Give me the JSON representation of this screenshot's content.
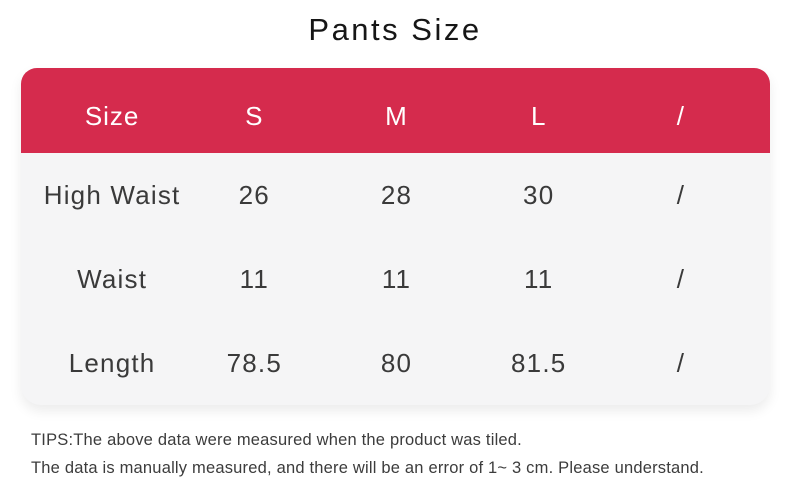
{
  "title": "Pants Size",
  "colors": {
    "accent": "#d52b4d",
    "header_text": "#ffffff",
    "card_bg": "#f5f5f6",
    "page_bg": "#ffffff",
    "body_text": "#3a3a3a",
    "title_text": "#161616",
    "tips_text": "#3c3c3c"
  },
  "chart_data": {
    "type": "table",
    "title": "Pants Size",
    "columns": [
      "Size",
      "S",
      "M",
      "L",
      "/"
    ],
    "rows": [
      [
        "High Waist",
        "26",
        "28",
        "30",
        "/"
      ],
      [
        "Waist",
        "11",
        "11",
        "11",
        "/"
      ],
      [
        "Length",
        "78.5",
        "80",
        "81.5",
        "/"
      ]
    ],
    "notes": [
      "TIPS:The above data were measured when the product was tiled.",
      "The data is manually measured, and there will be an error of 1~ 3 cm. Please understand."
    ]
  },
  "tips": {
    "line1": "TIPS:The above data were measured when the product was tiled.",
    "line2": "The data is manually measured, and there will be an error of 1~ 3 cm. Please understand."
  }
}
